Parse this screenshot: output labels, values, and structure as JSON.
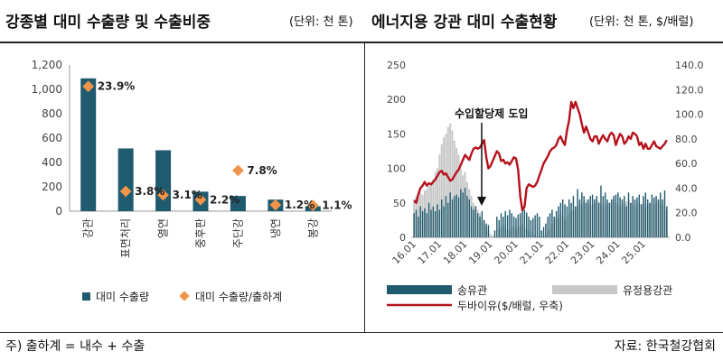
{
  "left": {
    "title": "강종별 대미 수출량 및 수출비중",
    "unit": "(단위: 천 톤)"
  },
  "right": {
    "title": "에너지용 강관 대미 수출현황",
    "unit": "(단위: 천 톤, $/배럴)"
  },
  "footer": {
    "note": "주) 출하계 = 내수 + 수출",
    "source": "자료: 한국철강협회"
  },
  "chart_data": [
    {
      "type": "bar",
      "categories": [
        "강관",
        "표면처리",
        "열연",
        "중후판",
        "주단강",
        "냉연",
        "봉강"
      ],
      "series": [
        {
          "name": "대미 수출량",
          "values": [
            1090,
            515,
            500,
            160,
            125,
            95,
            40
          ],
          "color": "#1f5a6e"
        },
        {
          "name": "대미 수출량/출하계",
          "values": [
            23.9,
            3.8,
            3.1,
            2.2,
            7.8,
            1.2,
            1.1
          ],
          "labels": [
            "23.9%",
            "3.8%",
            "3.1%",
            "2.2%",
            "7.8%",
            "1.2%",
            "1.1%"
          ],
          "color": "#f0944a"
        }
      ],
      "yticks": [
        "0",
        "200",
        "400",
        "600",
        "800",
        "1,000",
        "1,200"
      ],
      "ylim": [
        0,
        1200
      ],
      "secondary_ylim": [
        0,
        28
      ]
    },
    {
      "type": "bar+line",
      "xticks": [
        "16.01",
        "17.01",
        "18.01",
        "19.01",
        "20.01",
        "21.01",
        "22.01",
        "23.01",
        "24.01",
        "25.01"
      ],
      "yticks_left": [
        "0",
        "50",
        "100",
        "150",
        "200",
        "250"
      ],
      "yticks_right": [
        "0.0",
        "20.0",
        "40.0",
        "60.0",
        "80.0",
        "100.0",
        "120.0",
        "140.0"
      ],
      "ylim_left": [
        0,
        250
      ],
      "ylim_right": [
        0,
        140
      ],
      "annotation": "수입할당제 도입",
      "legend": [
        "송유관",
        "유정용강관",
        "두바이유($/배럴, 우축)"
      ],
      "colors": {
        "pipeline": "#1f5a6e",
        "octg": "#c8c8c8",
        "oil": "#b5121b"
      },
      "monthly_pipeline": [
        35,
        40,
        30,
        45,
        38,
        42,
        35,
        50,
        40,
        45,
        38,
        48,
        40,
        55,
        45,
        60,
        50,
        65,
        55,
        60,
        62,
        58,
        70,
        65,
        72,
        60,
        55,
        45,
        40,
        45,
        35,
        30,
        38,
        25,
        20,
        18,
        0,
        0,
        10,
        30,
        25,
        35,
        30,
        38,
        32,
        40,
        35,
        30,
        28,
        33,
        35,
        38,
        40,
        36,
        30,
        25,
        28,
        32,
        35,
        30,
        10,
        15,
        20,
        30,
        35,
        40,
        30,
        38,
        45,
        50,
        55,
        48,
        45,
        55,
        50,
        60,
        45,
        70,
        55,
        65,
        60,
        50,
        55,
        60,
        62,
        55,
        60,
        50,
        75,
        60,
        65,
        55,
        50,
        55,
        60,
        62,
        65,
        58,
        55,
        60,
        45,
        65,
        50,
        60,
        55,
        58,
        62,
        48,
        60,
        65,
        55,
        50,
        62,
        58,
        60,
        55,
        65,
        55,
        68,
        45
      ],
      "monthly_octg": [
        55,
        60,
        58,
        65,
        62,
        68,
        70,
        75,
        80,
        85,
        95,
        100,
        120,
        135,
        145,
        150,
        160,
        165,
        155,
        140,
        130,
        120,
        100,
        90,
        95,
        80,
        70,
        60,
        50,
        45,
        40,
        35,
        25,
        20,
        15,
        10,
        5,
        3,
        2,
        0,
        12,
        15,
        18,
        14,
        12,
        10,
        14,
        16,
        12,
        15,
        18,
        20,
        14,
        12,
        10,
        8,
        5,
        3,
        2,
        1,
        0,
        2,
        5,
        10,
        12,
        20,
        25,
        30,
        28,
        35,
        30,
        25,
        30,
        35,
        40,
        38,
        42,
        45,
        50,
        48,
        52,
        55,
        50,
        45,
        48,
        50,
        55,
        52,
        48,
        50,
        45,
        48,
        50,
        52,
        55,
        50,
        48,
        45,
        50,
        48,
        52,
        55,
        50,
        48,
        45,
        50,
        52,
        48,
        50,
        45,
        48,
        50,
        52,
        48,
        50,
        55,
        50,
        48,
        45,
        40
      ],
      "monthly_oil": [
        30,
        28,
        35,
        40,
        42,
        45,
        42,
        44,
        43,
        45,
        47,
        50,
        53,
        54,
        51,
        52,
        49,
        46,
        47,
        50,
        53,
        55,
        59,
        63,
        67,
        65,
        63,
        68,
        72,
        73,
        72,
        73,
        76,
        79,
        65,
        56,
        58,
        62,
        66,
        70,
        68,
        62,
        63,
        60,
        61,
        59,
        62,
        65,
        64,
        55,
        33,
        22,
        25,
        40,
        43,
        42,
        41,
        42,
        45,
        50,
        55,
        60,
        63,
        66,
        70,
        72,
        73,
        75,
        80,
        82,
        78,
        75,
        87,
        95,
        110,
        105,
        110,
        105,
        100,
        92,
        85,
        90,
        85,
        80,
        78,
        82,
        82,
        76,
        80,
        83,
        80,
        78,
        83,
        85,
        83,
        75,
        80,
        84,
        82,
        76,
        78,
        82,
        80,
        85,
        84,
        82,
        75,
        77,
        72,
        76,
        72,
        72,
        75,
        78,
        74,
        73,
        72,
        74,
        76,
        79
      ]
    }
  ]
}
